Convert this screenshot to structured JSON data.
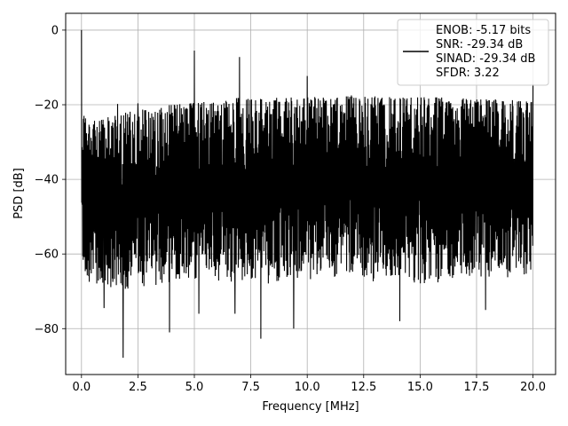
{
  "chart_data": {
    "type": "line",
    "xlabel": "Frequency [MHz]",
    "ylabel": "PSD [dB]",
    "xlim": [
      -0.7,
      21.0
    ],
    "ylim": [
      -92.3,
      4.5
    ],
    "xticks": [
      0.0,
      2.5,
      5.0,
      7.5,
      10.0,
      12.5,
      15.0,
      17.5,
      20.0
    ],
    "xtick_labels": [
      "0.0",
      "2.5",
      "5.0",
      "7.5",
      "10.0",
      "12.5",
      "15.0",
      "17.5",
      "20.0"
    ],
    "yticks": [
      0,
      -20,
      -40,
      -60,
      -80
    ],
    "ytick_labels": [
      "0",
      "−20",
      "−40",
      "−60",
      "−80"
    ],
    "grid": true,
    "legend_position": "top-right",
    "series": [
      {
        "legend_lines": [
          "ENOB: -5.17 bits",
          "SNR: -29.34 dB",
          "SINAD: -29.34 dB",
          "SFDR: 3.22"
        ],
        "color": "#000000",
        "x_range": [
          0.0,
          20.0
        ],
        "upper_envelope": [
          [
            0.0,
            -22
          ],
          [
            0.5,
            -24
          ],
          [
            1.0,
            -23.5
          ],
          [
            2.0,
            -22
          ],
          [
            3.0,
            -21
          ],
          [
            4.0,
            -20
          ],
          [
            5.0,
            -19.5
          ],
          [
            6.0,
            -19
          ],
          [
            7.0,
            -18
          ],
          [
            8.0,
            -18
          ],
          [
            10.0,
            -18
          ],
          [
            12.0,
            -17.5
          ],
          [
            14.0,
            -18
          ],
          [
            16.0,
            -18
          ],
          [
            18.0,
            -18.5
          ],
          [
            20.0,
            -19
          ]
        ],
        "lower_envelope": [
          [
            0.0,
            -60
          ],
          [
            0.5,
            -66
          ],
          [
            1.0,
            -67
          ],
          [
            2.0,
            -66
          ],
          [
            3.0,
            -64
          ],
          [
            4.0,
            -63
          ],
          [
            5.0,
            -63
          ],
          [
            6.0,
            -63
          ],
          [
            8.0,
            -63
          ],
          [
            10.0,
            -63
          ],
          [
            12.0,
            -62
          ],
          [
            14.0,
            -63
          ],
          [
            16.0,
            -63
          ],
          [
            18.0,
            -63
          ],
          [
            20.0,
            -62
          ]
        ],
        "peaks": [
          {
            "x": 0.0,
            "y": 0.0
          },
          {
            "x": 5.0,
            "y": -5.5
          },
          {
            "x": 7.0,
            "y": -7.2
          },
          {
            "x": 10.0,
            "y": -12.3
          },
          {
            "x": 2.5,
            "y": -19.6
          },
          {
            "x": 20.0,
            "y": -14.5
          },
          {
            "x": 1.6,
            "y": -19.8
          }
        ],
        "dips": [
          {
            "x": 1.85,
            "y": -87.8
          },
          {
            "x": 3.9,
            "y": -81.0
          },
          {
            "x": 7.95,
            "y": -82.7
          },
          {
            "x": 9.4,
            "y": -80.0
          },
          {
            "x": 14.1,
            "y": -78.0
          },
          {
            "x": 17.9,
            "y": -75.0
          },
          {
            "x": 1.0,
            "y": -74.5
          },
          {
            "x": 5.2,
            "y": -76.0
          },
          {
            "x": 6.8,
            "y": -76.0
          }
        ]
      }
    ]
  }
}
